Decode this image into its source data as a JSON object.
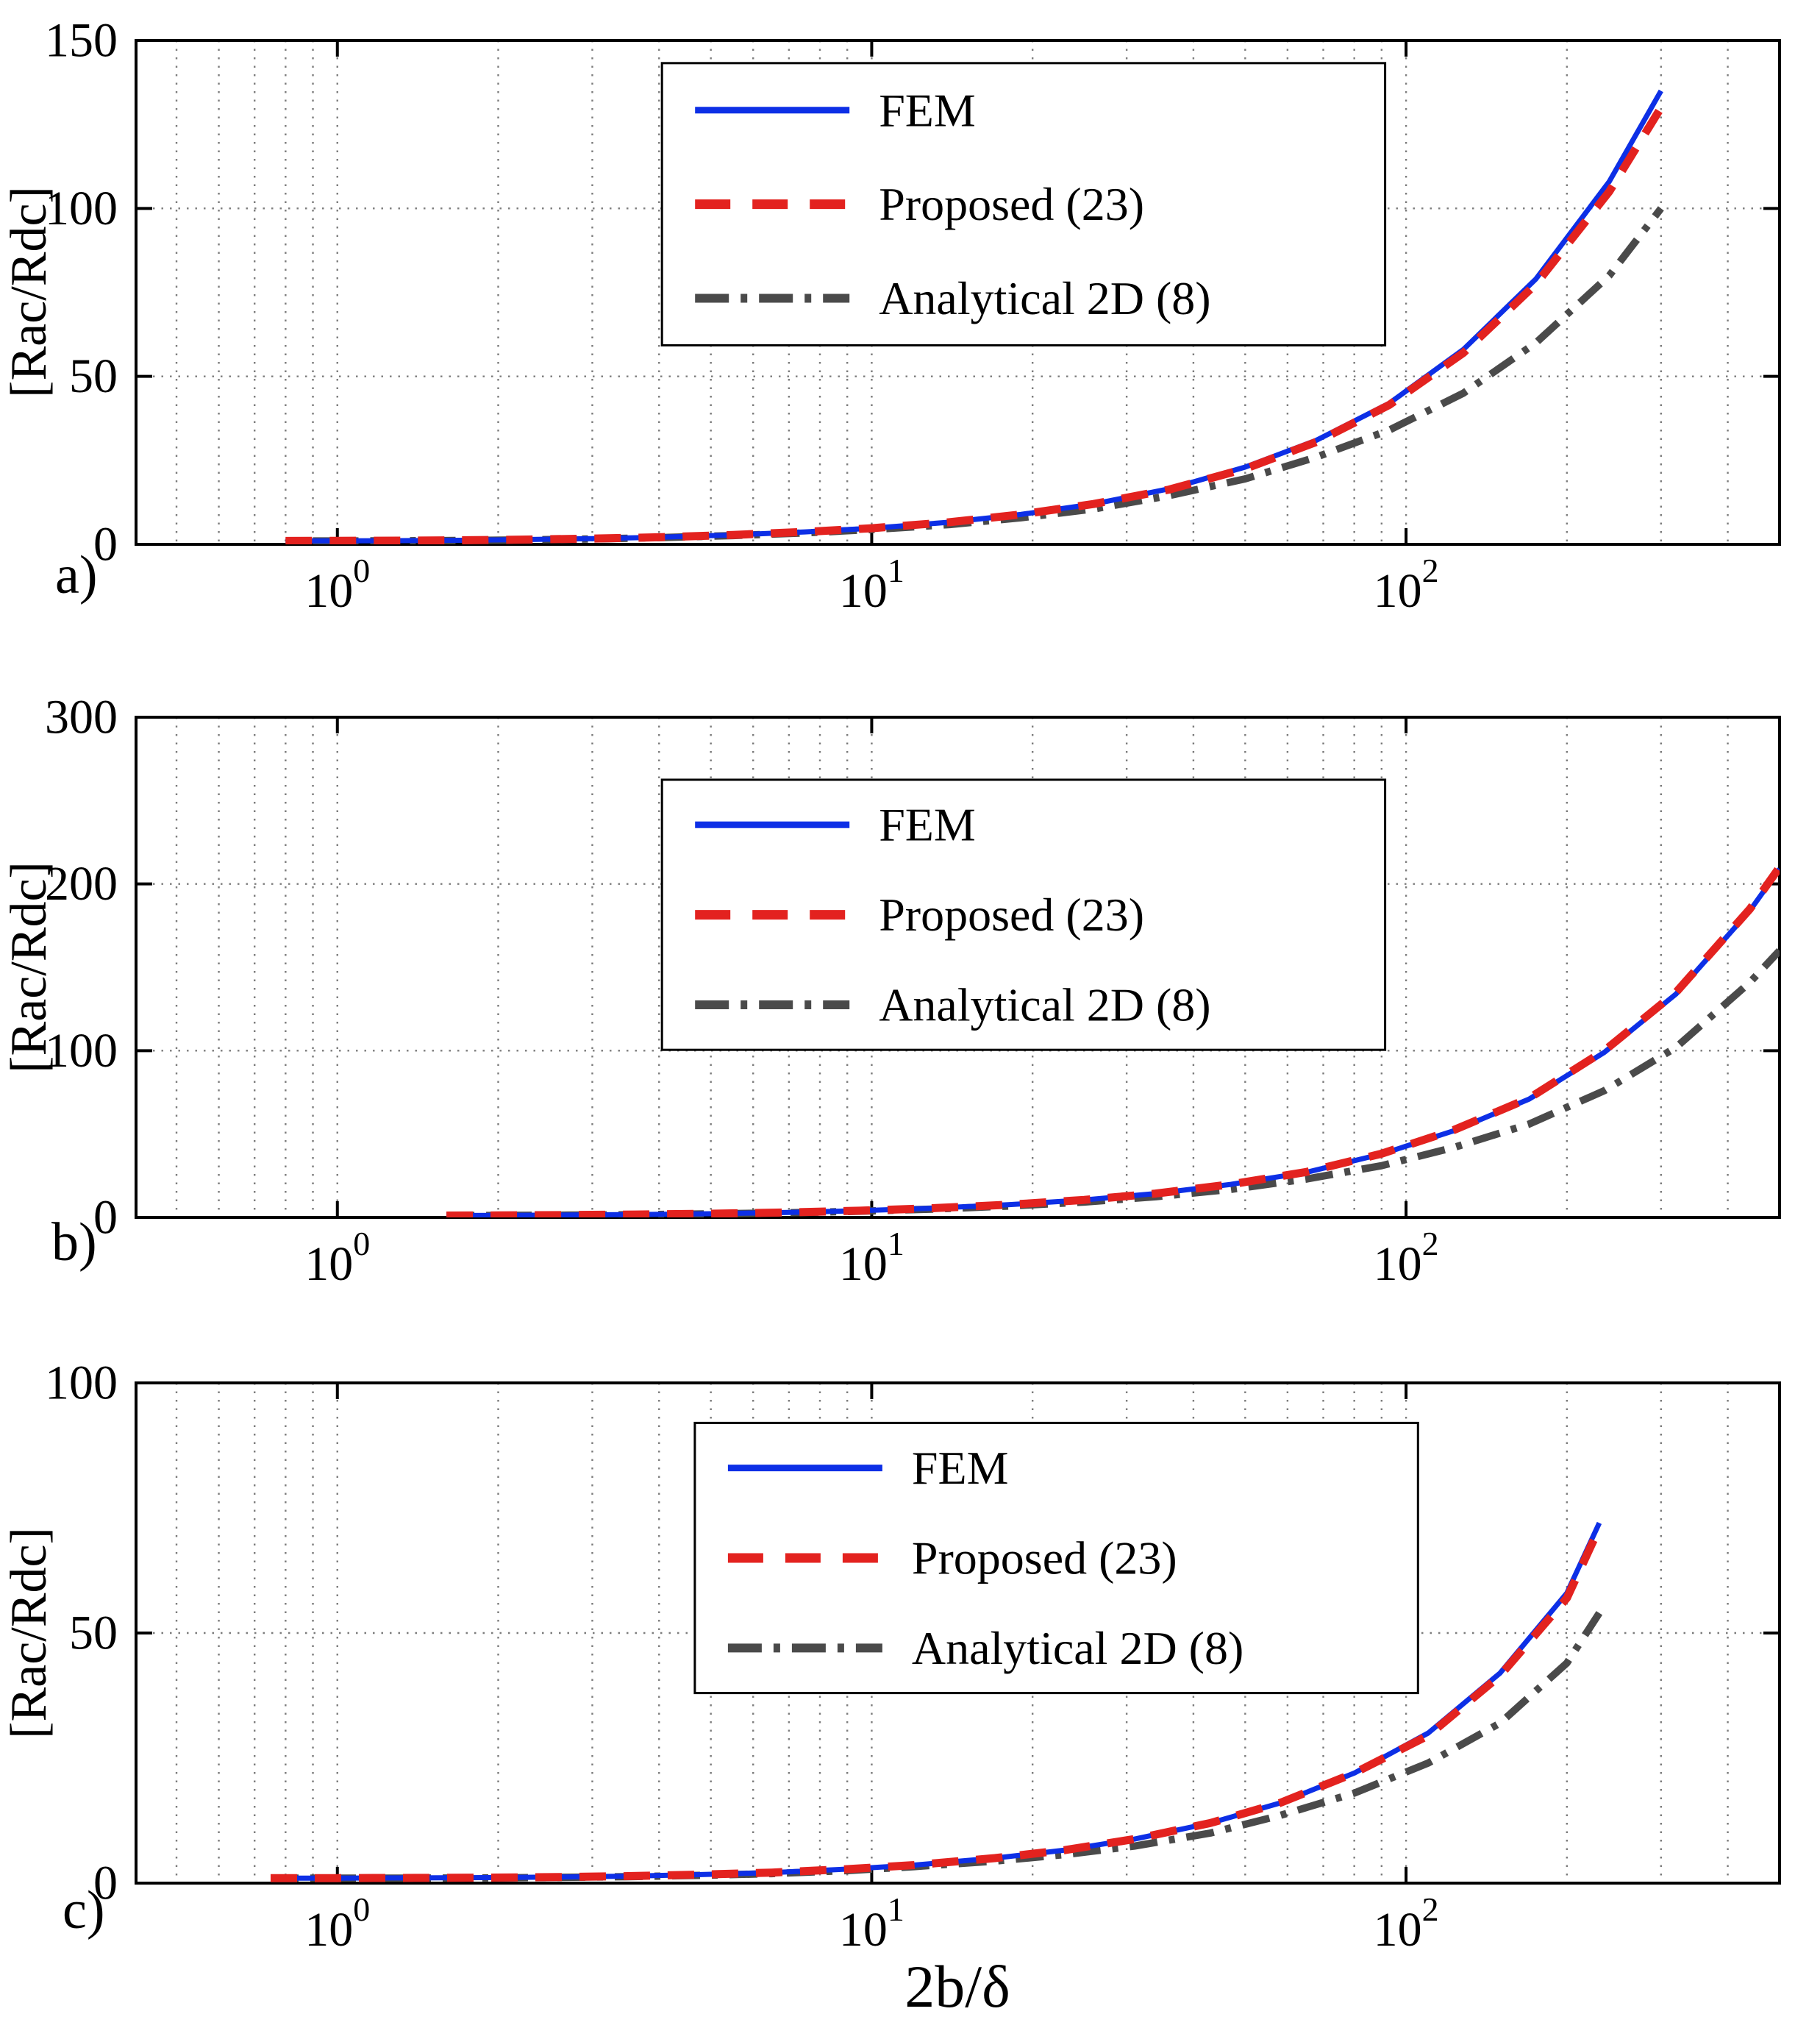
{
  "figure": {
    "xlabel": "2b/δ",
    "colors": {
      "fem": "#0d2fe6",
      "proposed": "#e3221f",
      "analytical": "#4a4a4a"
    },
    "legend_labels": [
      "FEM",
      "Proposed (23)",
      "Analytical 2D (8)"
    ]
  },
  "chart_data": [
    {
      "type": "line",
      "panel_label": "a)",
      "ylabel": "[Rac/Rdc]",
      "xlabel": "",
      "xscale": "log",
      "xlim": [
        0.42,
        500
      ],
      "ylim": [
        0,
        150
      ],
      "yticks": [
        0,
        50,
        100,
        150
      ],
      "xticks_exponents": [
        0,
        1,
        2
      ],
      "grid": true,
      "legend_position": "upper-center",
      "legend": {
        "x": 0.32,
        "y": 0.045,
        "w": 0.44,
        "h": 0.56
      },
      "series": [
        {
          "name": "FEM",
          "color": "#0d2fe6",
          "style": "solid",
          "x": [
            0.8,
            1,
            1.3,
            1.7,
            2.2,
            3,
            4,
            5.5,
            7.5,
            10,
            14,
            19,
            26,
            36,
            50,
            68,
            93,
            128,
            175,
            240,
            300
          ],
          "y": [
            1.0,
            1.05,
            1.1,
            1.2,
            1.4,
            1.7,
            2.1,
            2.8,
            3.7,
            4.8,
            6.6,
            8.9,
            12,
            16.5,
            23,
            31,
            42,
            58,
            79,
            108,
            135
          ]
        },
        {
          "name": "Proposed (23)",
          "color": "#e3221f",
          "style": "dashed",
          "x": [
            0.8,
            1,
            1.3,
            1.7,
            2.2,
            3,
            4,
            5.5,
            7.5,
            10,
            14,
            19,
            26,
            36,
            50,
            68,
            93,
            128,
            175,
            240,
            300
          ],
          "y": [
            1.0,
            1.05,
            1.1,
            1.2,
            1.4,
            1.7,
            2.1,
            2.8,
            3.7,
            4.8,
            6.6,
            8.9,
            12,
            16.3,
            22.5,
            30.5,
            41.5,
            57,
            77.5,
            105,
            130
          ]
        },
        {
          "name": "Analytical 2D (8)",
          "color": "#4a4a4a",
          "style": "dashdot",
          "x": [
            0.9,
            1,
            1.3,
            1.7,
            2.2,
            3,
            4,
            5.5,
            7.5,
            10,
            14,
            19,
            26,
            36,
            50,
            68,
            93,
            128,
            175,
            240,
            300
          ],
          "y": [
            1.0,
            1.0,
            1.05,
            1.15,
            1.3,
            1.6,
            2.0,
            2.6,
            3.4,
            4.4,
            5.9,
            7.9,
            10.5,
            14.5,
            19.5,
            26,
            34,
            45,
            60,
            80,
            100
          ]
        }
      ]
    },
    {
      "type": "line",
      "panel_label": "b)",
      "ylabel": "[Rac/Rdc]",
      "xlabel": "",
      "xscale": "log",
      "xlim": [
        0.42,
        500
      ],
      "ylim": [
        0,
        300
      ],
      "yticks": [
        0,
        100,
        200,
        300
      ],
      "xticks_exponents": [
        0,
        1,
        2
      ],
      "grid": true,
      "legend_position": "upper-center",
      "legend": {
        "x": 0.32,
        "y": 0.125,
        "w": 0.44,
        "h": 0.54
      },
      "series": [
        {
          "name": "FEM",
          "color": "#0d2fe6",
          "style": "solid",
          "x": [
            1.6,
            2,
            2.7,
            3.6,
            5,
            7,
            9.5,
            13,
            18,
            25,
            34,
            47,
            65,
            90,
            123,
            170,
            235,
            320,
            440,
            500
          ],
          "y": [
            1.1,
            1.2,
            1.4,
            1.7,
            2.2,
            3.0,
            4.0,
            5.5,
            7.6,
            10.5,
            14.3,
            19.8,
            27,
            38,
            52,
            71,
            99,
            134,
            184,
            209
          ]
        },
        {
          "name": "Proposed (23)",
          "color": "#e3221f",
          "style": "dashed",
          "x": [
            1.6,
            2,
            2.7,
            3.6,
            5,
            7,
            9.5,
            13,
            18,
            25,
            34,
            47,
            65,
            90,
            123,
            170,
            235,
            320,
            440,
            500
          ],
          "y": [
            1.1,
            1.2,
            1.4,
            1.7,
            2.2,
            3.0,
            4.0,
            5.5,
            7.6,
            10.5,
            14.3,
            19.8,
            27.2,
            38.2,
            52.5,
            71.5,
            100,
            135,
            185,
            210
          ]
        },
        {
          "name": "Analytical 2D (8)",
          "color": "#4a4a4a",
          "style": "dashdot",
          "x": [
            1.6,
            2,
            2.7,
            3.6,
            5,
            7,
            9.5,
            13,
            18,
            25,
            34,
            47,
            65,
            90,
            123,
            170,
            235,
            320,
            440,
            500
          ],
          "y": [
            1.1,
            1.2,
            1.35,
            1.6,
            2.1,
            2.8,
            3.7,
            5.0,
            6.8,
            9.2,
            12.4,
            16.8,
            23,
            31,
            42,
            56,
            76,
            102,
            141,
            160
          ]
        }
      ]
    },
    {
      "type": "line",
      "panel_label": "c)",
      "ylabel": "[Rac/Rdc]",
      "xlabel": "2b/δ",
      "xscale": "log",
      "xlim": [
        0.42,
        500
      ],
      "ylim": [
        0,
        100
      ],
      "yticks": [
        0,
        50,
        100
      ],
      "xticks_exponents": [
        0,
        1,
        2
      ],
      "grid": true,
      "legend_position": "upper-center",
      "legend": {
        "x": 0.34,
        "y": 0.08,
        "w": 0.44,
        "h": 0.54
      },
      "series": [
        {
          "name": "FEM",
          "color": "#0d2fe6",
          "style": "solid",
          "x": [
            0.75,
            1,
            1.4,
            1.9,
            2.6,
            3.5,
            4.8,
            6.5,
            9,
            12,
            17,
            23,
            31,
            43,
            58,
            80,
            110,
            150,
            200,
            230
          ],
          "y": [
            1.0,
            1.0,
            1.05,
            1.1,
            1.2,
            1.4,
            1.7,
            2.1,
            2.8,
            3.6,
            5.0,
            6.6,
            8.8,
            12,
            16,
            22,
            30,
            42,
            58,
            72
          ]
        },
        {
          "name": "Proposed (23)",
          "color": "#e3221f",
          "style": "dashed",
          "x": [
            0.75,
            1,
            1.4,
            1.9,
            2.6,
            3.5,
            4.8,
            6.5,
            9,
            12,
            17,
            23,
            31,
            43,
            58,
            80,
            110,
            150,
            200,
            230
          ],
          "y": [
            1.0,
            1.0,
            1.05,
            1.1,
            1.2,
            1.4,
            1.7,
            2.1,
            2.8,
            3.6,
            5.0,
            6.6,
            8.8,
            12,
            16,
            22,
            29.5,
            41.5,
            57,
            71
          ]
        },
        {
          "name": "Analytical 2D (8)",
          "color": "#4a4a4a",
          "style": "dashdot",
          "x": [
            0.75,
            1,
            1.4,
            1.9,
            2.6,
            3.5,
            4.8,
            6.5,
            9,
            12,
            17,
            23,
            31,
            43,
            58,
            80,
            110,
            150,
            200,
            230
          ],
          "y": [
            1.0,
            1.0,
            1.0,
            1.05,
            1.15,
            1.3,
            1.55,
            1.9,
            2.5,
            3.3,
            4.4,
            5.7,
            7.4,
            10,
            13.5,
            18,
            24,
            32,
            44,
            54
          ]
        }
      ]
    }
  ]
}
